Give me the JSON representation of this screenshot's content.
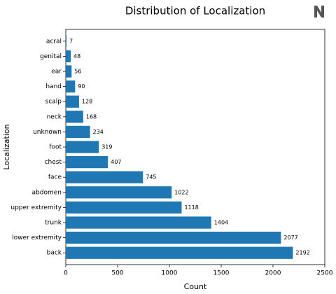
{
  "chart_data": {
    "type": "barh",
    "title": "Distribution of Localization",
    "xlabel": "Count",
    "ylabel": "Localization",
    "categories": [
      "acral",
      "genital",
      "ear",
      "hand",
      "scalp",
      "neck",
      "unknown",
      "foot",
      "chest",
      "face",
      "abdomen",
      "upper extremity",
      "trunk",
      "lower extremity",
      "back"
    ],
    "values": [
      7,
      48,
      56,
      90,
      128,
      168,
      234,
      319,
      407,
      745,
      1022,
      1118,
      1404,
      2077,
      2192
    ],
    "color": "#1f77b4",
    "xlim": [
      0,
      2500
    ],
    "xticks": [
      0,
      500,
      1000,
      1500,
      2000,
      2500
    ]
  }
}
